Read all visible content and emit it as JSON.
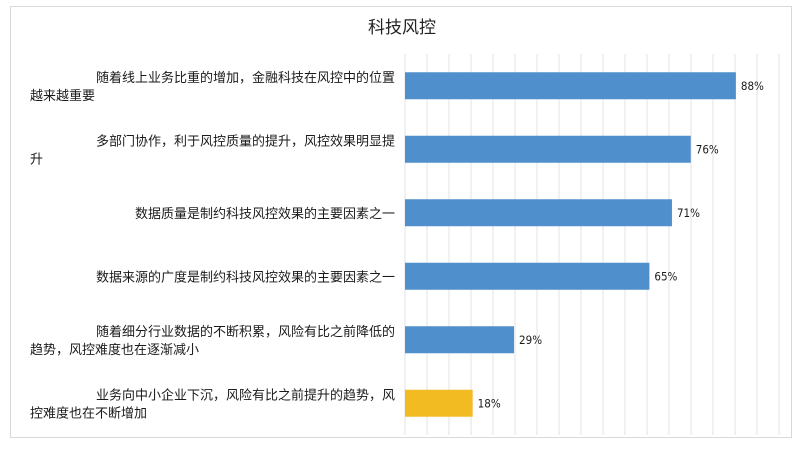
{
  "chart_data": {
    "type": "bar",
    "orientation": "horizontal",
    "title": "科技风控",
    "categories": [
      [
        "随着线上业务比重的增加，金融科技在风控中的位置",
        "越来越重要"
      ],
      [
        "多部门协作，利于风控质量的提升，风控效果明显提",
        "升"
      ],
      [
        "数据质量是制约科技风控效果的主要因素之一"
      ],
      [
        "数据来源的广度是制约科技风控效果的主要因素之一"
      ],
      [
        "随着细分行业数据的不断积累，风险有比之前降低的",
        "趋势，风控难度也在逐渐减小"
      ],
      [
        "业务向中小企业下沉，风险有比之前提升的趋势，风",
        "控难度也在不断增加"
      ]
    ],
    "values": [
      88,
      76,
      71,
      65,
      29,
      18
    ],
    "value_labels": [
      "88%",
      "76%",
      "71%",
      "65%",
      "29%",
      "18%"
    ],
    "bar_colors": [
      "#4f8fcc",
      "#4f8fcc",
      "#4f8fcc",
      "#4f8fcc",
      "#4f8fcc",
      "#f3bb22"
    ],
    "xlim": [
      0,
      100
    ],
    "grid": true,
    "legend": "none"
  }
}
